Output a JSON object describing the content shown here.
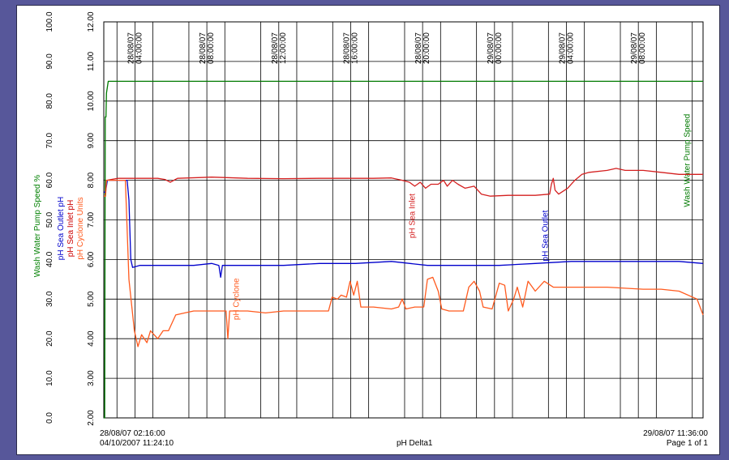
{
  "chart_data": {
    "type": "line",
    "title": "pH Delta1",
    "x_start": "28/08/07 02:16:00",
    "x_end": "29/08/07 11:36:00",
    "x_ticks": [
      {
        "t": 1.733,
        "date": "28/08/07",
        "time": "04:00:00"
      },
      {
        "t": 5.733,
        "date": "28/08/07",
        "time": "08:00:00"
      },
      {
        "t": 9.733,
        "date": "28/08/07",
        "time": "12:00:00"
      },
      {
        "t": 13.733,
        "date": "28/08/07",
        "time": "16:00:00"
      },
      {
        "t": 17.733,
        "date": "28/08/07",
        "time": "20:00:00"
      },
      {
        "t": 21.733,
        "date": "29/08/07",
        "time": "00:00:00"
      },
      {
        "t": 25.733,
        "date": "29/08/07",
        "time": "04:00:00"
      },
      {
        "t": 29.733,
        "date": "29/08/07",
        "time": "08:00:00"
      }
    ],
    "x_range_hours": [
      0,
      33.333
    ],
    "grid": true,
    "axes": [
      {
        "id": "percent",
        "label_parts": [
          {
            "text": "Wash Water Pump Speed",
            "color": "#008000"
          },
          {
            "text": "%",
            "color": "#008000"
          }
        ],
        "range": [
          0,
          100
        ],
        "ticks": [
          "0.0",
          "10.0",
          "20.0",
          "30.0",
          "40.0",
          "50.0",
          "60.0",
          "70.0",
          "80.0",
          "90.0",
          "100.0"
        ]
      },
      {
        "id": "ph",
        "label_lines": [
          [
            {
              "text": "pH Sea Outlet",
              "color": "#0000cc"
            },
            {
              "text": "pH",
              "color": "#0000cc"
            }
          ],
          [
            {
              "text": "pH Sea Inlet",
              "color": "#cc0000"
            },
            {
              "text": "pH",
              "color": "#cc0000"
            }
          ],
          [
            {
              "text": "pH Cyclone",
              "color": "#ff5a1e"
            },
            {
              "text": "Units",
              "color": "#ff5a1e"
            }
          ]
        ],
        "range": [
          2,
          12
        ],
        "ticks": [
          "2.00",
          "3.00",
          "4.00",
          "5.00",
          "6.00",
          "7.00",
          "8.00",
          "9.00",
          "10.00",
          "11.00",
          "12.00"
        ]
      }
    ],
    "series": [
      {
        "name": "Wash Water Pump Speed",
        "color": "#007a00",
        "axis": "percent",
        "label_t": 32.6,
        "label_y": 65,
        "points": [
          [
            0,
            0
          ],
          [
            0.05,
            0
          ],
          [
            0.08,
            76
          ],
          [
            0.12,
            76
          ],
          [
            0.15,
            82
          ],
          [
            0.25,
            85
          ],
          [
            0.3,
            85
          ],
          [
            33.333,
            85
          ]
        ]
      },
      {
        "name": "pH Sea Inlet",
        "color": "#d42020",
        "axis": "ph",
        "label_t": 17.3,
        "label_y": 7.1,
        "points": [
          [
            0,
            7.7
          ],
          [
            0.1,
            7.7
          ],
          [
            0.15,
            8.0
          ],
          [
            0.8,
            8.05
          ],
          [
            2,
            8.05
          ],
          [
            3,
            8.05
          ],
          [
            3.4,
            8.02
          ],
          [
            3.7,
            7.95
          ],
          [
            4.1,
            8.05
          ],
          [
            6,
            8.08
          ],
          [
            8,
            8.05
          ],
          [
            10,
            8.04
          ],
          [
            12,
            8.05
          ],
          [
            13,
            8.05
          ],
          [
            15,
            8.05
          ],
          [
            16,
            8.06
          ],
          [
            16.6,
            8.0
          ],
          [
            17.0,
            7.95
          ],
          [
            17.3,
            7.85
          ],
          [
            17.6,
            7.95
          ],
          [
            17.9,
            7.8
          ],
          [
            18.2,
            7.9
          ],
          [
            18.6,
            7.9
          ],
          [
            18.9,
            8.0
          ],
          [
            19.1,
            7.85
          ],
          [
            19.4,
            8.0
          ],
          [
            19.7,
            7.9
          ],
          [
            20.1,
            7.8
          ],
          [
            20.6,
            7.85
          ],
          [
            21.0,
            7.65
          ],
          [
            21.5,
            7.6
          ],
          [
            22.5,
            7.62
          ],
          [
            24.0,
            7.62
          ],
          [
            24.8,
            7.65
          ],
          [
            24.9,
            7.9
          ],
          [
            25.0,
            8.05
          ],
          [
            25.1,
            7.75
          ],
          [
            25.3,
            7.65
          ],
          [
            25.8,
            7.8
          ],
          [
            26.2,
            8.0
          ],
          [
            26.6,
            8.15
          ],
          [
            27.0,
            8.2
          ],
          [
            28,
            8.25
          ],
          [
            28.5,
            8.3
          ],
          [
            29,
            8.25
          ],
          [
            30,
            8.25
          ],
          [
            31,
            8.2
          ],
          [
            32,
            8.15
          ],
          [
            33.333,
            8.15
          ]
        ]
      },
      {
        "name": "pH Sea Outlet",
        "color": "#0000cc",
        "axis": "ph",
        "label_t": 24.7,
        "label_y": 6.6,
        "points": [
          [
            0,
            7.7
          ],
          [
            0.1,
            7.7
          ],
          [
            0.2,
            8.0
          ],
          [
            1.2,
            8.0
          ],
          [
            1.3,
            8.0
          ],
          [
            1.4,
            7.5
          ],
          [
            1.5,
            6.0
          ],
          [
            1.6,
            5.8
          ],
          [
            2,
            5.85
          ],
          [
            3,
            5.85
          ],
          [
            4,
            5.85
          ],
          [
            5,
            5.85
          ],
          [
            6,
            5.9
          ],
          [
            6.4,
            5.85
          ],
          [
            6.5,
            5.55
          ],
          [
            6.6,
            5.85
          ],
          [
            8,
            5.85
          ],
          [
            10,
            5.85
          ],
          [
            12,
            5.9
          ],
          [
            14,
            5.9
          ],
          [
            16,
            5.95
          ],
          [
            18,
            5.85
          ],
          [
            20,
            5.85
          ],
          [
            22,
            5.85
          ],
          [
            24,
            5.9
          ],
          [
            26,
            5.95
          ],
          [
            28,
            5.95
          ],
          [
            30,
            5.95
          ],
          [
            32,
            5.95
          ],
          [
            33.333,
            5.9
          ]
        ]
      },
      {
        "name": "pH Cyclone",
        "color": "#ff5a1e",
        "axis": "ph",
        "label_t": 7.5,
        "label_y": 5.0,
        "points": [
          [
            0,
            7.6
          ],
          [
            0.1,
            7.6
          ],
          [
            0.15,
            8.0
          ],
          [
            1.2,
            8.0
          ],
          [
            1.4,
            5.5
          ],
          [
            1.7,
            4.2
          ],
          [
            1.9,
            3.8
          ],
          [
            2.1,
            4.1
          ],
          [
            2.4,
            3.9
          ],
          [
            2.6,
            4.2
          ],
          [
            3.0,
            4.0
          ],
          [
            3.3,
            4.2
          ],
          [
            3.6,
            4.2
          ],
          [
            4,
            4.6
          ],
          [
            4.5,
            4.65
          ],
          [
            5,
            4.7
          ],
          [
            6,
            4.7
          ],
          [
            6.8,
            4.7
          ],
          [
            6.9,
            4.0
          ],
          [
            7.0,
            4.7
          ],
          [
            8,
            4.7
          ],
          [
            9,
            4.65
          ],
          [
            10,
            4.7
          ],
          [
            11,
            4.7
          ],
          [
            12,
            4.7
          ],
          [
            12.5,
            4.7
          ],
          [
            12.7,
            5.05
          ],
          [
            13.0,
            5.0
          ],
          [
            13.2,
            5.1
          ],
          [
            13.5,
            5.05
          ],
          [
            13.7,
            5.45
          ],
          [
            13.9,
            5.1
          ],
          [
            14.1,
            5.45
          ],
          [
            14.3,
            4.8
          ],
          [
            15,
            4.8
          ],
          [
            16,
            4.75
          ],
          [
            16.4,
            4.8
          ],
          [
            16.6,
            5.0
          ],
          [
            16.8,
            4.75
          ],
          [
            17.3,
            4.8
          ],
          [
            17.8,
            4.8
          ],
          [
            18.0,
            5.5
          ],
          [
            18.3,
            5.55
          ],
          [
            18.6,
            5.2
          ],
          [
            18.8,
            4.75
          ],
          [
            19.2,
            4.7
          ],
          [
            20.0,
            4.7
          ],
          [
            20.3,
            5.3
          ],
          [
            20.6,
            5.45
          ],
          [
            20.9,
            5.2
          ],
          [
            21.1,
            4.8
          ],
          [
            21.6,
            4.75
          ],
          [
            22.0,
            5.4
          ],
          [
            22.3,
            5.35
          ],
          [
            22.5,
            4.7
          ],
          [
            22.8,
            5.0
          ],
          [
            23.0,
            5.3
          ],
          [
            23.3,
            4.8
          ],
          [
            23.6,
            5.45
          ],
          [
            24.0,
            5.2
          ],
          [
            24.5,
            5.45
          ],
          [
            25.0,
            5.3
          ],
          [
            26,
            5.3
          ],
          [
            28,
            5.3
          ],
          [
            30,
            5.25
          ],
          [
            31,
            5.25
          ],
          [
            32,
            5.2
          ],
          [
            33.0,
            5.0
          ],
          [
            33.333,
            4.6
          ]
        ]
      }
    ]
  },
  "footer": {
    "start_datetime": "28/08/07 02:16:00",
    "print_datetime": "04/10/2007  11:24:10",
    "title": "pH Delta1",
    "end_datetime": "29/08/07 11:36:00",
    "page": "Page 1 of 1"
  }
}
